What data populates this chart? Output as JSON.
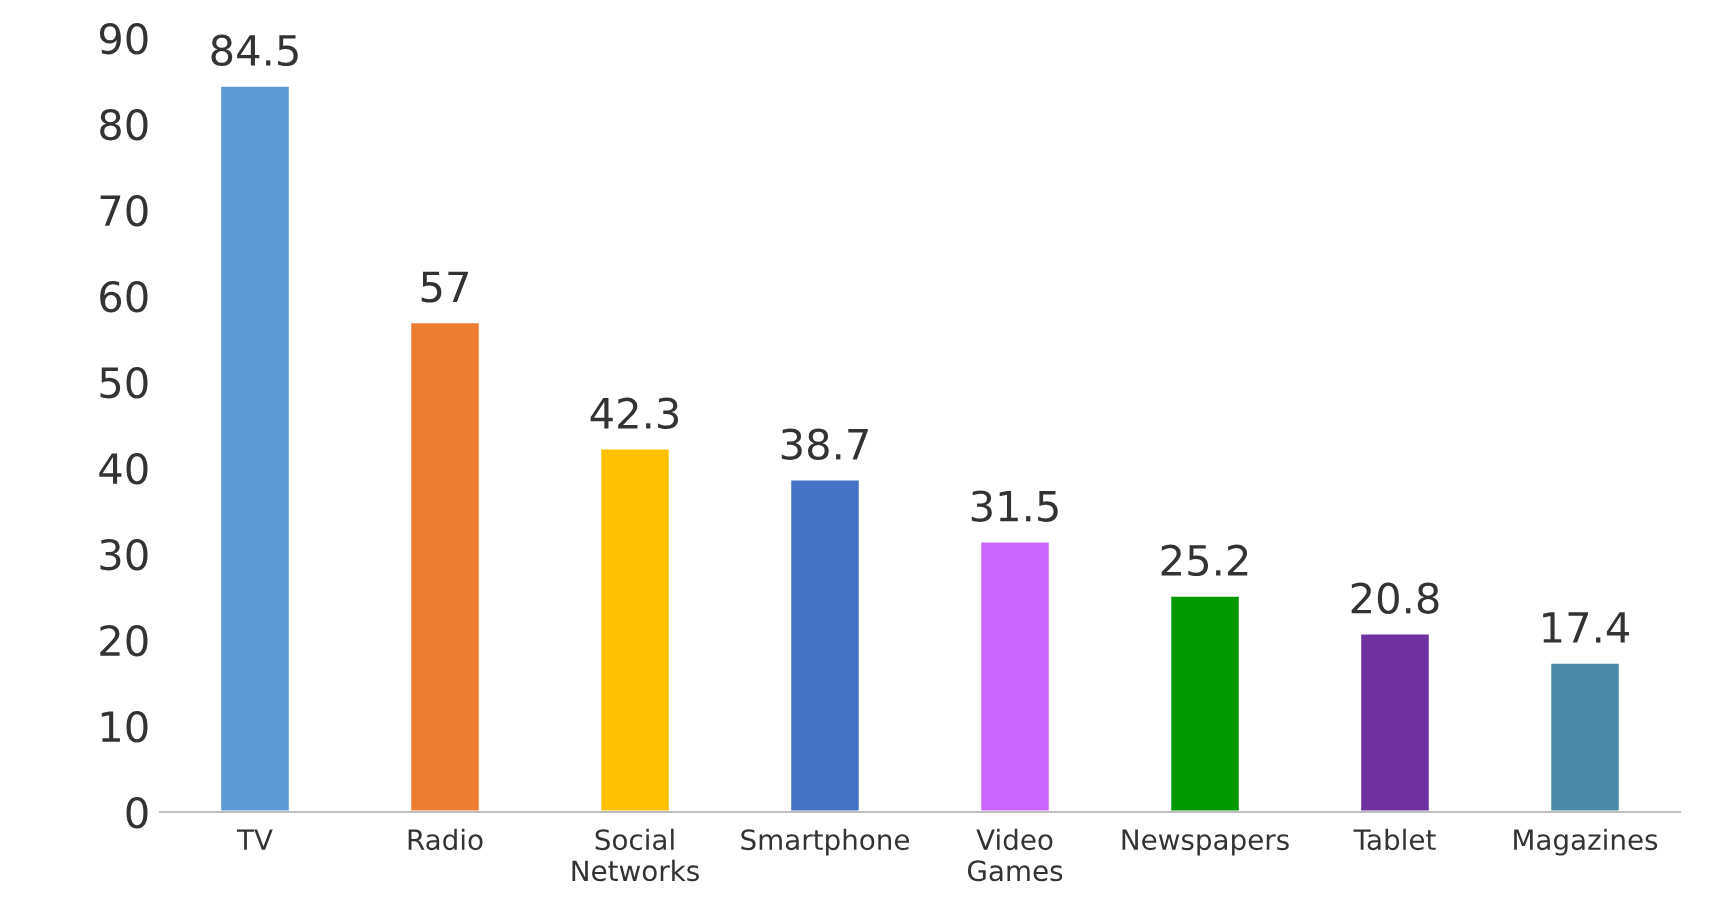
{
  "chart_data": {
    "type": "bar",
    "categories": [
      "TV",
      "Radio",
      "Social\nNetworks",
      "Smartphone",
      "Video\nGames",
      "Newspapers",
      "Tablet",
      "Magazines"
    ],
    "values": [
      84.5,
      57,
      42.3,
      38.7,
      31.5,
      25.2,
      20.8,
      17.4
    ],
    "colors": [
      "#5b9bd5",
      "#ed7d31",
      "#ffc000",
      "#4472c4",
      "#cc66ff",
      "#009900",
      "#7030a0",
      "#4a8aa8"
    ],
    "ylim": [
      0,
      90
    ],
    "yticks": [
      0,
      10,
      20,
      30,
      40,
      50,
      60,
      70,
      80,
      90
    ],
    "data_labels": true,
    "grid": false,
    "legend": false
  }
}
